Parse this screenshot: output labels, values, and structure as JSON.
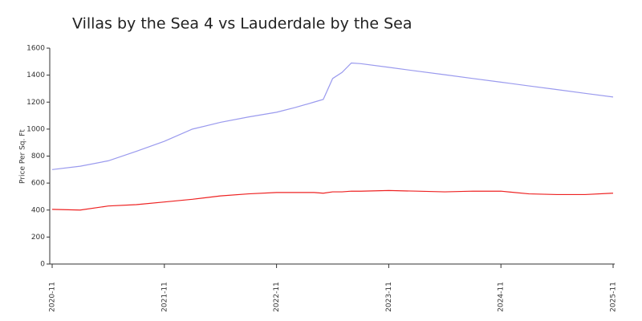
{
  "chart_data": {
    "type": "line",
    "title": "Villas by the Sea 4 vs Lauderdale by the Sea",
    "y_label": "Price Per Sq. Ft",
    "x": [
      "2020-11",
      "2021-02",
      "2021-05",
      "2021-08",
      "2021-11",
      "2022-02",
      "2022-05",
      "2022-08",
      "2022-11",
      "2023-01",
      "2023-03",
      "2023-04",
      "2023-05",
      "2023-06",
      "2023-07",
      "2023-08",
      "2023-11",
      "2024-02",
      "2024-05",
      "2024-08",
      "2024-11",
      "2025-02",
      "2025-05",
      "2025-08",
      "2025-11"
    ],
    "series": [
      {
        "color": "#9a9aee",
        "values": [
          700,
          725,
          765,
          835,
          910,
          1000,
          1050,
          1090,
          1125,
          1160,
          1200,
          1220,
          1375,
          1420,
          1490,
          1485,
          1458,
          1430,
          1403,
          1375,
          1348,
          1320,
          1293,
          1265,
          1238
        ]
      },
      {
        "color": "#ee2222",
        "values": [
          405,
          400,
          430,
          440,
          460,
          480,
          505,
          520,
          530,
          530,
          530,
          525,
          535,
          535,
          540,
          540,
          545,
          540,
          535,
          540,
          540,
          520,
          515,
          515,
          525
        ]
      }
    ],
    "xlim": [
      "2020-11",
      "2025-11"
    ],
    "xticks": [
      "2020-11",
      "2021-11",
      "2022-11",
      "2023-11",
      "2024-11",
      "2025-11"
    ],
    "ylim": [
      0,
      1600
    ],
    "yticks": [
      0,
      200,
      400,
      600,
      800,
      1000,
      1200,
      1400,
      1600
    ]
  }
}
